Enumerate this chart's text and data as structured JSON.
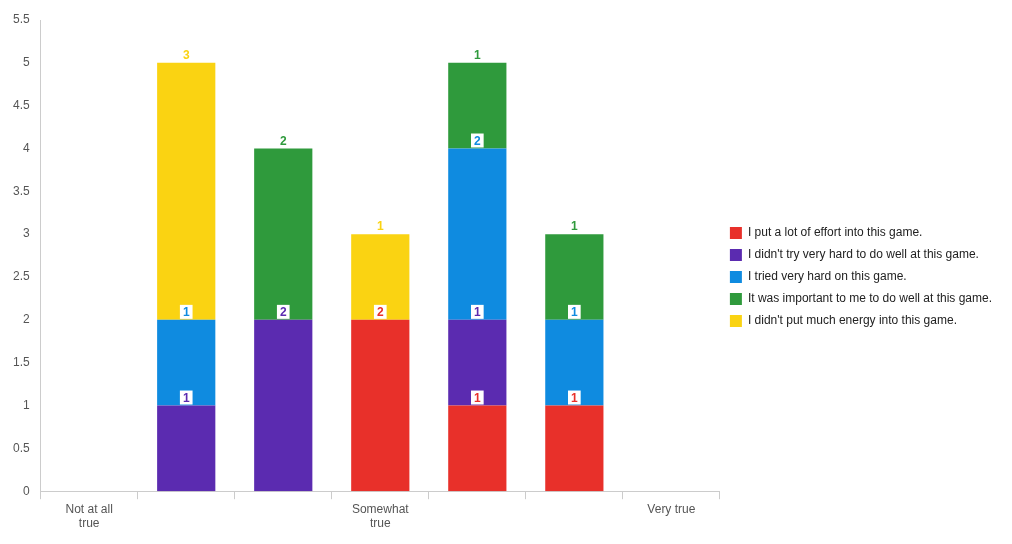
{
  "chart_data": {
    "type": "bar",
    "stacked": true,
    "categories": [
      "Not at all true",
      null,
      null,
      "Somewhat true",
      null,
      null,
      "Very true"
    ],
    "series": [
      {
        "name": "I put a lot of effort into this game.",
        "color": "#e8302a",
        "values": [
          null,
          null,
          null,
          2,
          1,
          1,
          null
        ]
      },
      {
        "name": "I didn't try very hard to do well at this game.",
        "color": "#5b2bb0",
        "values": [
          null,
          1,
          2,
          null,
          1,
          null,
          null
        ]
      },
      {
        "name": "I tried very hard on this game.",
        "color": "#0f8be0",
        "values": [
          null,
          1,
          null,
          null,
          2,
          1,
          null
        ]
      },
      {
        "name": "It was important to me to do well at this game.",
        "color": "#2f9a3c",
        "values": [
          null,
          null,
          2,
          null,
          1,
          1,
          null
        ]
      },
      {
        "name": "I didn't put much energy into this game.",
        "color": "#fad312",
        "values": [
          null,
          3,
          null,
          1,
          null,
          null,
          null
        ]
      }
    ],
    "ylim": [
      0,
      5.5
    ],
    "yticks": [
      0,
      0.5,
      1,
      1.5,
      2,
      2.5,
      3,
      3.5,
      4,
      4.5,
      5,
      5.5
    ],
    "grid": false,
    "legend": "right",
    "data_labels": true
  }
}
